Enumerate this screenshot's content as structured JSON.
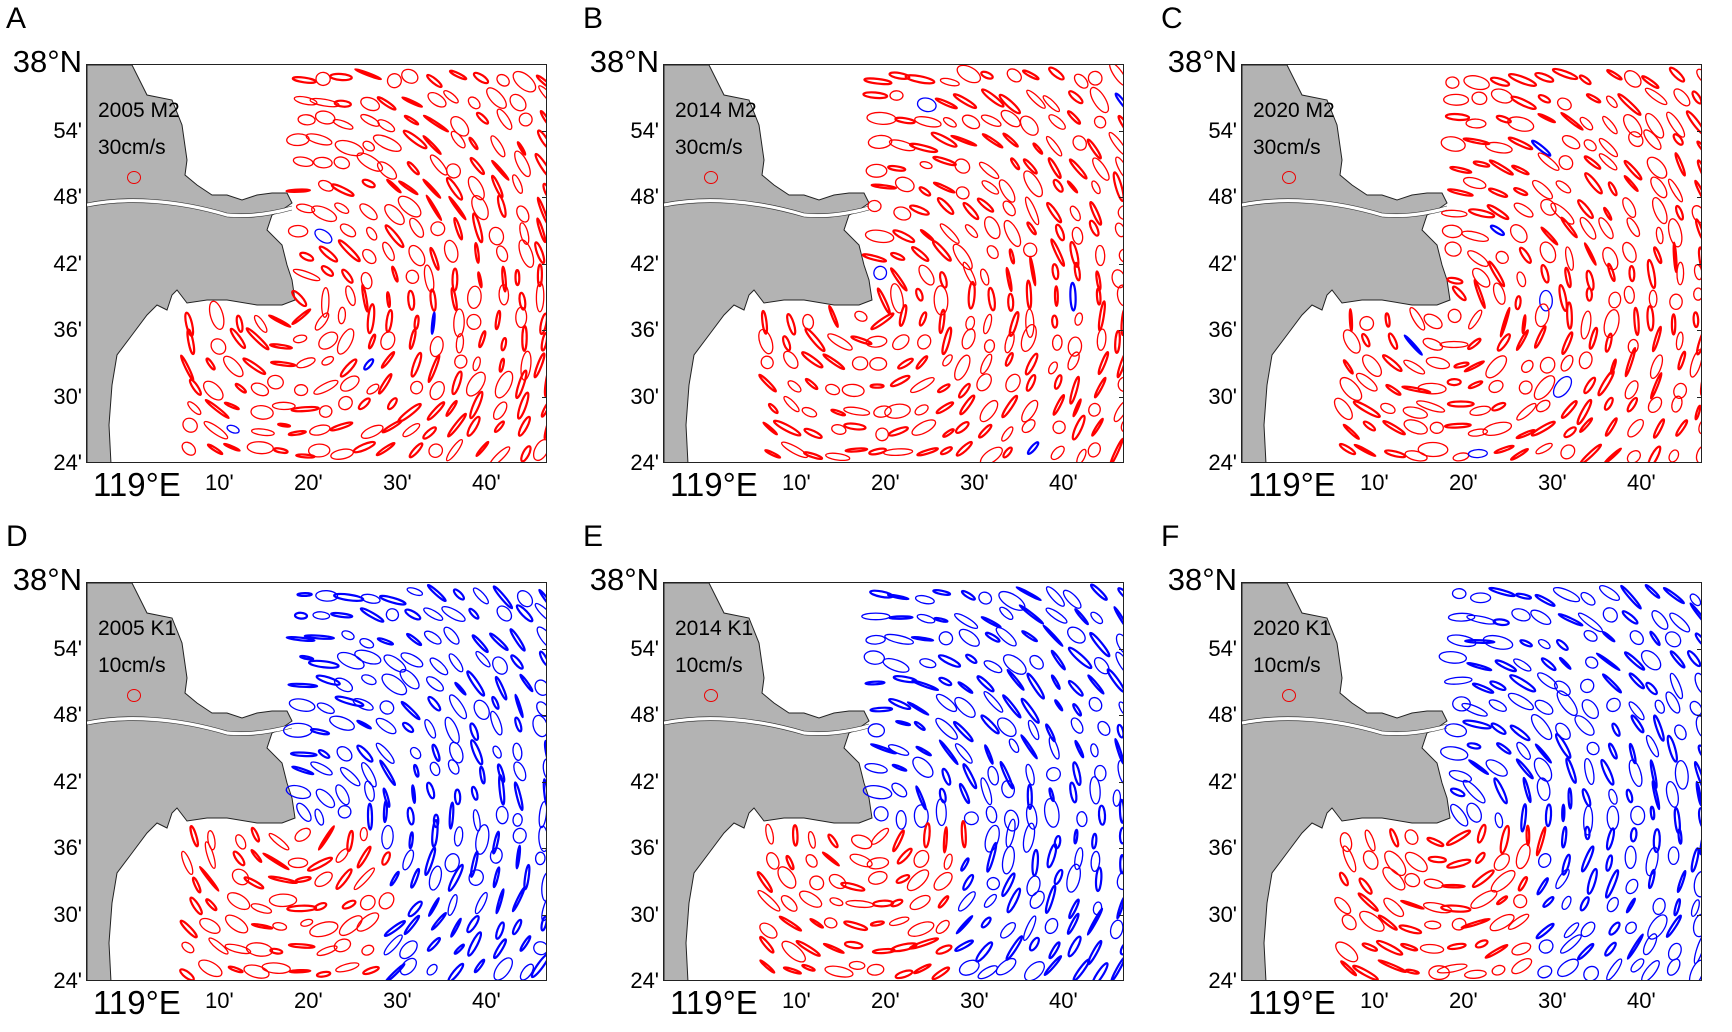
{
  "figure": {
    "colors": {
      "land": "#b3b3b3",
      "counterclockwise": "#ff0000",
      "clockwise": "#0000ff",
      "frame": "#222222"
    },
    "y_ticks": [
      "38°N",
      "54'",
      "48'",
      "42'",
      "36'",
      "30'",
      "24'"
    ],
    "x_ticks": [
      "119°E",
      "10'",
      "20'",
      "30'",
      "40'"
    ],
    "panels": [
      {
        "letter": "A",
        "year": "2005",
        "constituent": "M2",
        "label": "2005 M2",
        "scale": "30cm/s"
      },
      {
        "letter": "B",
        "year": "2014",
        "constituent": "M2",
        "label": "2014 M2",
        "scale": "30cm/s"
      },
      {
        "letter": "C",
        "year": "2020",
        "constituent": "M2",
        "label": "2020 M2",
        "scale": "30cm/s"
      },
      {
        "letter": "D",
        "year": "2005",
        "constituent": "K1",
        "label": "2005 K1",
        "scale": "10cm/s"
      },
      {
        "letter": "E",
        "year": "2014",
        "constituent": "K1",
        "label": "2014 K1",
        "scale": "10cm/s"
      },
      {
        "letter": "F",
        "year": "2020",
        "constituent": "K1",
        "label": "2020 K1",
        "scale": "10cm/s"
      }
    ]
  }
}
